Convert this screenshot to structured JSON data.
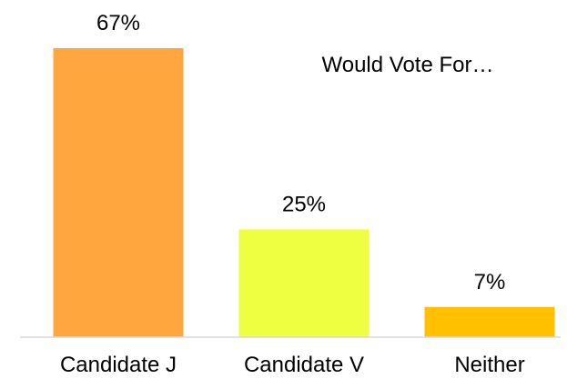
{
  "chart_data": {
    "type": "bar",
    "title": "Would Vote For…",
    "categories": [
      "Candidate J",
      "Candidate V",
      "Neither"
    ],
    "values": [
      67,
      25,
      7
    ],
    "value_labels": [
      "67%",
      "25%",
      "7%"
    ],
    "colors": [
      "#FFA73E",
      "#EEFF41",
      "#FFC000"
    ],
    "xlabel": "",
    "ylabel": "",
    "ylim": [
      0,
      70
    ],
    "grid": false,
    "legend": "none"
  }
}
